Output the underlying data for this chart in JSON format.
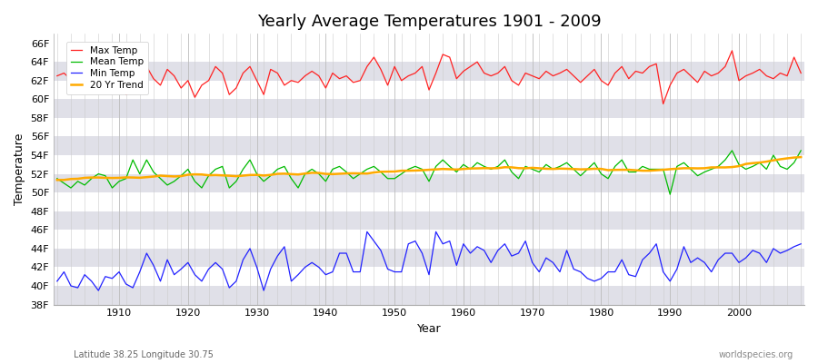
{
  "title": "Yearly Average Temperatures 1901 - 2009",
  "xlabel": "Year",
  "ylabel": "Temperature",
  "subtitle_lat": "Latitude 38.25 Longitude 30.75",
  "watermark": "worldspecies.org",
  "ylim": [
    38,
    67
  ],
  "yticks": [
    38,
    40,
    42,
    44,
    46,
    48,
    50,
    52,
    54,
    56,
    58,
    60,
    62,
    64,
    66
  ],
  "ytick_labels": [
    "38F",
    "40F",
    "42F",
    "44F",
    "46F",
    "48F",
    "50F",
    "52F",
    "54F",
    "56F",
    "58F",
    "60F",
    "62F",
    "64F",
    "66F"
  ],
  "xstart": 1901,
  "xend": 2009,
  "legend_labels": [
    "Max Temp",
    "Mean Temp",
    "Min Temp",
    "20 Yr Trend"
  ],
  "colors": {
    "max": "#ff2222",
    "mean": "#00bb00",
    "min": "#2222ff",
    "trend": "#ffaa00",
    "band_light": "#ffffff",
    "band_dark": "#e0e0e8"
  },
  "max_temps": [
    62.5,
    62.8,
    62.1,
    61.5,
    62.9,
    63.2,
    62.7,
    61.8,
    63.5,
    62.0,
    60.5,
    60.8,
    60.8,
    63.5,
    62.2,
    61.5,
    63.2,
    62.5,
    61.2,
    62.0,
    60.2,
    61.5,
    62.0,
    63.5,
    62.8,
    60.5,
    61.2,
    62.8,
    63.5,
    62.0,
    60.5,
    63.2,
    62.8,
    61.5,
    62.0,
    61.8,
    62.5,
    63.0,
    62.5,
    61.2,
    62.8,
    62.2,
    62.5,
    61.8,
    62.0,
    63.5,
    64.5,
    63.2,
    61.5,
    63.5,
    62.0,
    62.5,
    62.8,
    63.5,
    61.0,
    62.8,
    64.8,
    64.5,
    62.2,
    63.0,
    63.5,
    64.0,
    62.8,
    62.5,
    62.8,
    63.5,
    62.0,
    61.5,
    62.8,
    62.5,
    62.2,
    63.0,
    62.5,
    62.8,
    63.2,
    62.5,
    61.8,
    62.5,
    63.2,
    62.0,
    61.5,
    62.8,
    63.5,
    62.2,
    63.0,
    62.8,
    63.5,
    63.8,
    59.5,
    61.5,
    62.8,
    63.2,
    62.5,
    61.8,
    63.0,
    62.5,
    62.8,
    63.5,
    65.2,
    62.0,
    62.5,
    62.8,
    63.2,
    62.5,
    62.2,
    62.8,
    62.5,
    64.5,
    62.8
  ],
  "mean_temps": [
    51.5,
    51.0,
    50.5,
    51.2,
    50.8,
    51.5,
    52.0,
    51.8,
    50.5,
    51.2,
    51.5,
    53.5,
    52.0,
    53.5,
    52.2,
    51.5,
    50.8,
    51.2,
    51.8,
    52.5,
    51.2,
    50.5,
    51.8,
    52.5,
    52.8,
    50.5,
    51.2,
    52.5,
    53.5,
    52.0,
    51.2,
    51.8,
    52.5,
    52.8,
    51.5,
    50.5,
    52.0,
    52.5,
    52.0,
    51.2,
    52.5,
    52.8,
    52.2,
    51.5,
    52.0,
    52.5,
    52.8,
    52.2,
    51.5,
    51.5,
    52.0,
    52.5,
    52.8,
    52.5,
    51.2,
    52.8,
    53.5,
    52.8,
    52.2,
    53.0,
    52.5,
    53.2,
    52.8,
    52.5,
    52.8,
    53.5,
    52.2,
    51.5,
    52.8,
    52.5,
    52.2,
    53.0,
    52.5,
    52.8,
    53.2,
    52.5,
    51.8,
    52.5,
    53.2,
    52.0,
    51.5,
    52.8,
    53.5,
    52.2,
    52.2,
    52.8,
    52.5,
    52.5,
    52.5,
    49.8,
    52.8,
    53.2,
    52.5,
    51.8,
    52.2,
    52.5,
    52.8,
    53.5,
    54.5,
    53.0,
    52.5,
    52.8,
    53.2,
    52.5,
    54.0,
    52.8,
    52.5,
    53.2,
    54.5
  ],
  "min_temps": [
    40.5,
    41.5,
    40.0,
    39.8,
    41.2,
    40.5,
    39.5,
    41.0,
    40.8,
    41.5,
    40.2,
    39.8,
    41.5,
    43.5,
    42.2,
    40.5,
    42.8,
    41.2,
    41.8,
    42.5,
    41.2,
    40.5,
    41.8,
    42.5,
    41.8,
    39.8,
    40.5,
    42.8,
    44.0,
    42.0,
    39.5,
    41.8,
    43.2,
    44.2,
    40.5,
    41.2,
    42.0,
    42.5,
    42.0,
    41.2,
    41.5,
    43.5,
    43.5,
    41.5,
    41.5,
    45.8,
    44.8,
    43.8,
    41.8,
    41.5,
    41.5,
    44.5,
    44.8,
    43.5,
    41.2,
    45.8,
    44.5,
    44.8,
    42.2,
    44.5,
    43.5,
    44.2,
    43.8,
    42.5,
    43.8,
    44.5,
    43.2,
    43.5,
    44.8,
    42.5,
    41.5,
    43.0,
    42.5,
    41.5,
    43.8,
    41.8,
    41.5,
    40.8,
    40.5,
    40.8,
    41.5,
    41.5,
    42.8,
    41.2,
    41.0,
    42.8,
    43.5,
    44.5,
    41.5,
    40.5,
    41.8,
    44.2,
    42.5,
    43.0,
    42.5,
    41.5,
    42.8,
    43.5,
    43.5,
    42.5,
    43.0,
    43.8,
    43.5,
    42.5,
    44.0,
    43.5,
    43.8,
    44.2,
    44.5
  ]
}
